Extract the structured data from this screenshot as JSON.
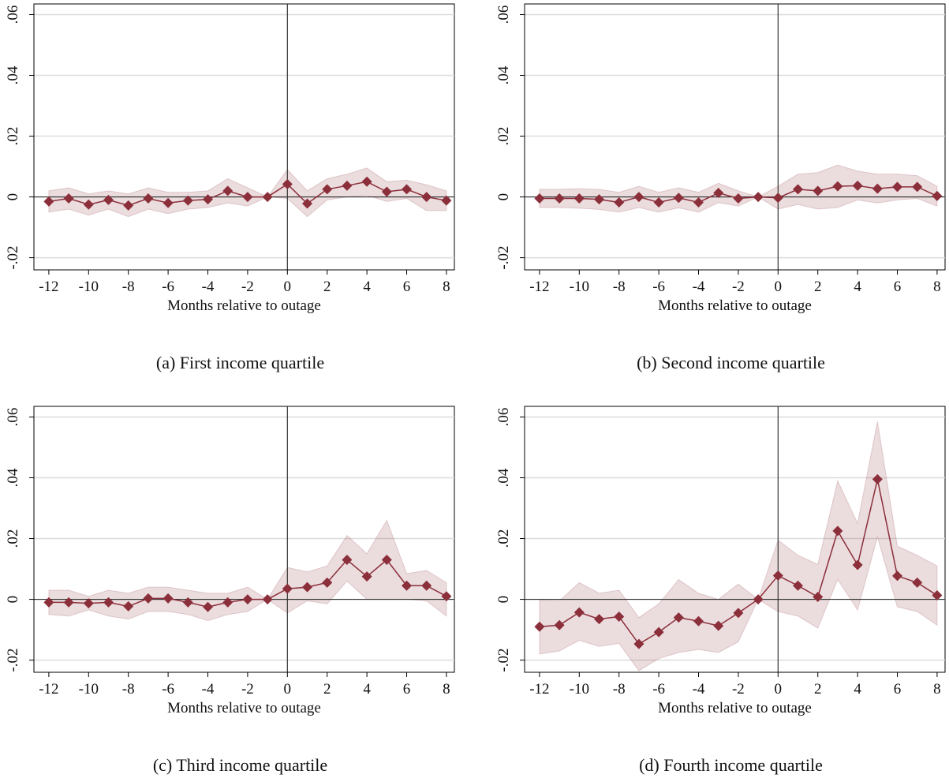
{
  "chart_data": [
    {
      "type": "line",
      "caption": "(a) First income quartile",
      "xlabel": "Months relative to outage",
      "x": [
        -12,
        -11,
        -10,
        -9,
        -8,
        -7,
        -6,
        -5,
        -4,
        -3,
        -2,
        -1,
        0,
        1,
        2,
        3,
        4,
        5,
        6,
        7,
        8
      ],
      "values": [
        -0.0015,
        -0.0005,
        -0.0025,
        -0.001,
        -0.0028,
        -0.0005,
        -0.002,
        -0.0012,
        -0.0008,
        0.002,
        0,
        0,
        0.0042,
        -0.0022,
        0.0025,
        0.0037,
        0.005,
        0.0017,
        0.0025,
        0,
        -0.0012
      ],
      "upper": [
        0.002,
        0.003,
        0.001,
        0.002,
        0.001,
        0.003,
        0.0015,
        0.0015,
        0.002,
        0.006,
        0.003,
        0,
        0.009,
        0.002,
        0.006,
        0.0075,
        0.0095,
        0.005,
        0.0055,
        0.004,
        0.002
      ],
      "lower": [
        -0.005,
        -0.004,
        -0.006,
        -0.004,
        -0.0065,
        -0.004,
        -0.0055,
        -0.004,
        -0.0035,
        -0.002,
        -0.003,
        0,
        -0.0005,
        -0.0065,
        -0.001,
        0,
        0.0005,
        -0.0015,
        -0.0005,
        -0.0045,
        -0.0045
      ],
      "color": "#8b2f3a",
      "band_color": "#8b2f3a",
      "xlim": [
        -12.75,
        8.4
      ],
      "ylim": [
        -0.024,
        0.0635
      ],
      "xticks": [
        -12,
        -10,
        -8,
        -6,
        -4,
        -2,
        0,
        2,
        4,
        6,
        8
      ],
      "yticks": [
        {
          "value": -0.02,
          "label": "-.02"
        },
        0,
        {
          "value": 0.02,
          "label": ".02"
        },
        {
          "value": 0.04,
          "label": ".04"
        },
        {
          "value": 0.06,
          "label": ".06"
        }
      ],
      "grid": true,
      "reference_lines": {
        "x": 0,
        "y": 0
      }
    },
    {
      "type": "line",
      "caption": "(b) Second income quartile",
      "xlabel": "Months relative to outage",
      "x": [
        -12,
        -11,
        -10,
        -9,
        -8,
        -7,
        -6,
        -5,
        -4,
        -3,
        -2,
        -1,
        0,
        1,
        2,
        3,
        4,
        5,
        6,
        7,
        8
      ],
      "values": [
        -0.0005,
        -0.0005,
        -0.0005,
        -0.0008,
        -0.0018,
        0,
        -0.0018,
        -0.0003,
        -0.0018,
        0.0013,
        -0.0005,
        0,
        -0.0003,
        0.0025,
        0.002,
        0.0035,
        0.0037,
        0.0027,
        0.0033,
        0.0033,
        0.0003
      ],
      "upper": [
        0.0025,
        0.0025,
        0.0027,
        0.0025,
        0.0015,
        0.0035,
        0.0015,
        0.003,
        0.0015,
        0.0045,
        0.002,
        0,
        0.0035,
        0.0075,
        0.008,
        0.0105,
        0.0085,
        0.0075,
        0.0075,
        0.007,
        0.0035
      ],
      "lower": [
        -0.0035,
        -0.0035,
        -0.0037,
        -0.0041,
        -0.005,
        -0.0035,
        -0.005,
        -0.0036,
        -0.005,
        -0.0019,
        -0.003,
        0,
        -0.004,
        -0.0025,
        -0.004,
        -0.0035,
        -0.001,
        -0.002,
        -0.001,
        -0.0005,
        -0.003
      ],
      "color": "#8b2f3a",
      "band_color": "#8b2f3a",
      "xlim": [
        -12.75,
        8.4
      ],
      "ylim": [
        -0.024,
        0.0635
      ],
      "xticks": [
        -12,
        -10,
        -8,
        -6,
        -4,
        -2,
        0,
        2,
        4,
        6,
        8
      ],
      "yticks": [
        {
          "value": -0.02,
          "label": "-.02"
        },
        0,
        {
          "value": 0.02,
          "label": ".02"
        },
        {
          "value": 0.04,
          "label": ".04"
        },
        {
          "value": 0.06,
          "label": ".06"
        }
      ],
      "grid": true,
      "reference_lines": {
        "x": 0,
        "y": 0
      }
    },
    {
      "type": "line",
      "caption": "(c) Third income quartile",
      "xlabel": "Months relative to outage",
      "x": [
        -12,
        -11,
        -10,
        -9,
        -8,
        -7,
        -6,
        -5,
        -4,
        -3,
        -2,
        -1,
        0,
        1,
        2,
        3,
        4,
        5,
        6,
        7,
        8
      ],
      "values": [
        -0.001,
        -0.001,
        -0.0013,
        -0.001,
        -0.0023,
        0.0003,
        0.0003,
        -0.001,
        -0.0025,
        -0.001,
        0,
        0,
        0.0035,
        0.004,
        0.0055,
        0.013,
        0.0075,
        0.013,
        0.0045,
        0.0045,
        0.001
      ],
      "upper": [
        0.003,
        0.003,
        0.001,
        0.003,
        0.002,
        0.004,
        0.004,
        0.003,
        0.002,
        0.002,
        0.004,
        0,
        0.0105,
        0.009,
        0.011,
        0.021,
        0.015,
        0.026,
        0.0085,
        0.0095,
        0.0055
      ],
      "lower": [
        -0.005,
        -0.0055,
        -0.0035,
        -0.0055,
        -0.0065,
        -0.004,
        -0.004,
        -0.005,
        -0.007,
        -0.005,
        -0.004,
        0,
        -0.0045,
        -0.0005,
        -0.0015,
        0.006,
        0,
        0,
        0,
        -0.0005,
        -0.0055
      ],
      "color": "#8b2f3a",
      "band_color": "#8b2f3a",
      "xlim": [
        -12.75,
        8.4
      ],
      "ylim": [
        -0.024,
        0.0635
      ],
      "xticks": [
        -12,
        -10,
        -8,
        -6,
        -4,
        -2,
        0,
        2,
        4,
        6,
        8
      ],
      "yticks": [
        {
          "value": -0.02,
          "label": "-.02"
        },
        0,
        {
          "value": 0.02,
          "label": ".02"
        },
        {
          "value": 0.04,
          "label": ".04"
        },
        {
          "value": 0.06,
          "label": ".06"
        }
      ],
      "grid": true,
      "reference_lines": {
        "x": 0,
        "y": 0
      }
    },
    {
      "type": "line",
      "caption": "(d) Fourth income quartile",
      "xlabel": "Months relative to outage",
      "x": [
        -12,
        -11,
        -10,
        -9,
        -8,
        -7,
        -6,
        -5,
        -4,
        -3,
        -2,
        -1,
        0,
        1,
        2,
        3,
        4,
        5,
        6,
        7,
        8
      ],
      "values": [
        -0.009,
        -0.0085,
        -0.0043,
        -0.0065,
        -0.0057,
        -0.0147,
        -0.0108,
        -0.006,
        -0.0072,
        -0.0087,
        -0.0045,
        0,
        0.0078,
        0.0045,
        0.0008,
        0.0225,
        0.0113,
        0.0395,
        0.0077,
        0.0055,
        0.0013
      ],
      "upper": [
        -0.0003,
        -0.0005,
        0.0055,
        0.002,
        0.003,
        -0.006,
        -0.0015,
        0.0065,
        0.002,
        0,
        0.005,
        0,
        0.0195,
        0.0145,
        0.0115,
        0.039,
        0.025,
        0.0585,
        0.0175,
        0.0145,
        0.011
      ],
      "lower": [
        -0.018,
        -0.017,
        -0.0135,
        -0.0155,
        -0.0145,
        -0.0235,
        -0.0195,
        -0.0175,
        -0.0165,
        -0.0175,
        -0.014,
        0,
        -0.004,
        -0.0055,
        -0.0095,
        0.0065,
        -0.0035,
        0.0205,
        -0.0025,
        -0.004,
        -0.0085
      ],
      "color": "#8b2f3a",
      "band_color": "#8b2f3a",
      "xlim": [
        -12.75,
        8.4
      ],
      "ylim": [
        -0.024,
        0.0635
      ],
      "xticks": [
        -12,
        -10,
        -8,
        -6,
        -4,
        -2,
        0,
        2,
        4,
        6,
        8
      ],
      "yticks": [
        {
          "value": -0.02,
          "label": "-.02"
        },
        0,
        {
          "value": 0.02,
          "label": ".02"
        },
        {
          "value": 0.04,
          "label": ".04"
        },
        {
          "value": 0.06,
          "label": ".06"
        }
      ],
      "grid": true,
      "reference_lines": {
        "x": 0,
        "y": 0
      }
    }
  ]
}
